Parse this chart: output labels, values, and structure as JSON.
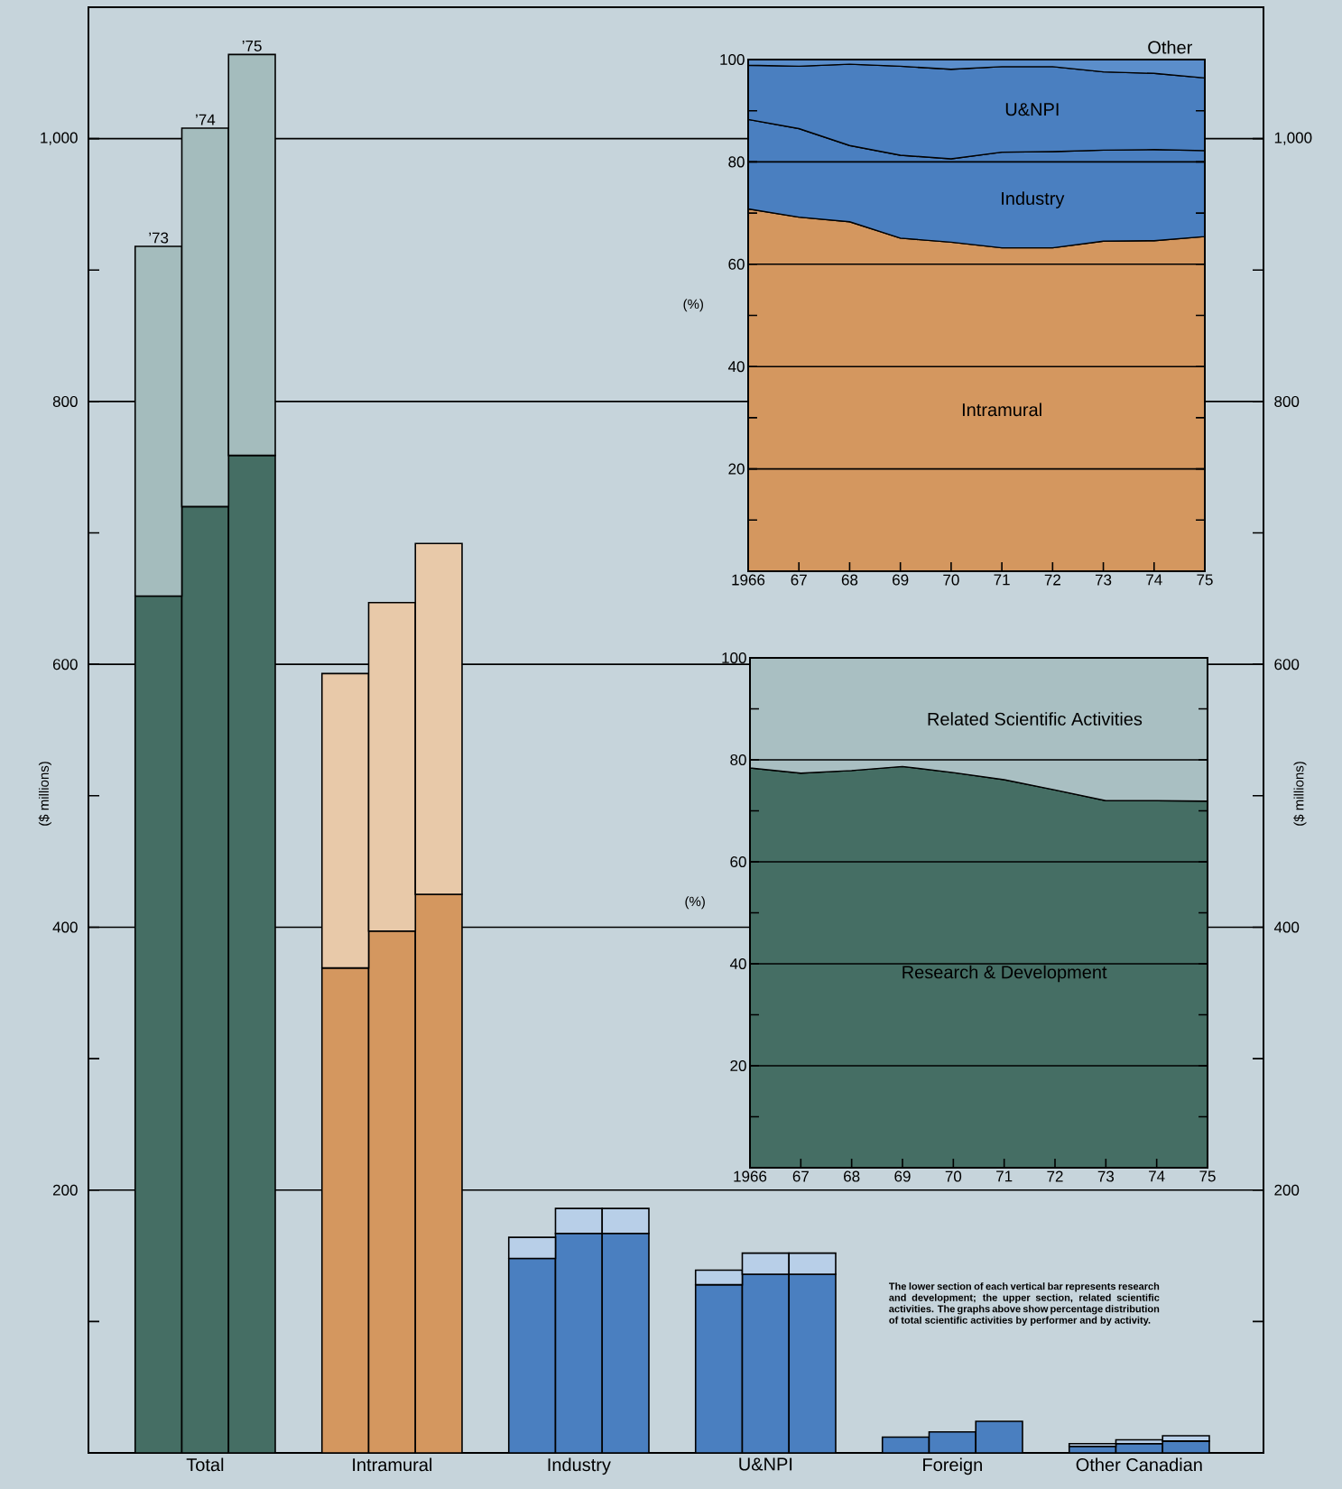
{
  "chart_data": [
    {
      "type": "bar",
      "stacked": true,
      "categories": [
        null,
        null,
        "Total",
        null,
        null,
        null,
        "Intramural",
        null,
        null,
        null,
        "Industry",
        null,
        null,
        null,
        "U&NPI",
        null,
        null,
        null,
        "Foreign",
        null,
        null,
        null,
        "Other Canadian",
        null
      ],
      "series": [
        {
          "values": [
            null,
            652,
            720,
            759,
            null,
            369,
            397,
            425,
            null,
            148,
            167,
            167,
            null,
            128,
            136,
            136,
            null,
            12,
            16,
            24,
            null,
            5,
            7,
            9
          ],
          "colors": [
            null,
            "#456e64",
            "#456e64",
            "#456e64",
            null,
            "#d4975f",
            "#d4975f",
            "#d4975f",
            null,
            "#4a7fc0",
            "#4a7fc0",
            "#4a7fc0",
            null,
            "#4a7fc0",
            "#4a7fc0",
            "#4a7fc0",
            null,
            "#4a7fc0",
            "#4a7fc0",
            "#4a7fc0",
            null,
            "#4a7fc0",
            "#4a7fc0",
            "#4a7fc0"
          ]
        },
        {
          "values": [
            null,
            266,
            288,
            305,
            null,
            224,
            250,
            267,
            null,
            16,
            19,
            19,
            null,
            11,
            16,
            16,
            null,
            null,
            null,
            null,
            null,
            2,
            3,
            4
          ],
          "colors": [
            null,
            "#a4bcbd",
            "#a4bcbd",
            "#a4bcbd",
            null,
            "#e8c9a9",
            "#e8c9a9",
            "#e8c9a9",
            null,
            "#b8cfe8",
            "#b8cfe8",
            "#b8cfe8",
            null,
            "#b8cfe8",
            "#b8cfe8",
            "#b8cfe8",
            null,
            null,
            null,
            null,
            null,
            "#b8cfe8",
            "#b8cfe8",
            "#b8cfe8"
          ]
        }
      ],
      "ylim": [
        0,
        1100
      ],
      "yticks": [
        {
          "value": 100,
          "label": null
        },
        200,
        {
          "value": 300,
          "label": null
        },
        400,
        {
          "value": 500,
          "label": null
        },
        600,
        {
          "value": 700,
          "label": null
        },
        800,
        {
          "value": 900,
          "label": null
        },
        {
          "value": 1000,
          "label": "1,000"
        }
      ],
      "y2lim": [
        0,
        1100
      ],
      "y2ticks": [
        {
          "value": 100,
          "label": null
        },
        200,
        {
          "value": 300,
          "label": null
        },
        400,
        {
          "value": 500,
          "label": null
        },
        600,
        {
          "value": 700,
          "label": null
        },
        800,
        {
          "value": 900,
          "label": null
        },
        {
          "value": 1000,
          "label": "1,000"
        }
      ],
      "ylabel": "($ millions)",
      "y2label": "($ millions)",
      "grid": "y",
      "annotations": [
        {
          "text": "’73",
          "y": 918
        },
        {
          "text": "’74",
          "y": 1008
        },
        {
          "text": "’75",
          "y": 1064
        },
        "The lower section of each vertical bar represents research and development; the upper section, related scientific activities. The graphs above show percentage distribution of total scientific activities by performer and by activity."
      ]
    },
    {
      "type": "area",
      "stacked": true,
      "x": [
        1966,
        1967,
        1968,
        1969,
        1970,
        1971,
        1972,
        1973,
        1974,
        1975
      ],
      "series": [
        {
          "name": "Intramural",
          "color": "#d4975f",
          "values": [
            70.8,
            69.2,
            68.3,
            65.1,
            64.3,
            63.2,
            63.2,
            64.5,
            64.6,
            65.4
          ]
        },
        {
          "name": "Industry",
          "color": "#4a7fc0",
          "values": [
            17.5,
            17.3,
            14.9,
            16.2,
            16.3,
            18.7,
            18.8,
            17.8,
            17.8,
            16.8
          ]
        },
        {
          "name": "U&NPI",
          "color": "#4a7fc0",
          "values": [
            10.6,
            12.2,
            15.9,
            17.4,
            17.5,
            16.7,
            16.6,
            15.3,
            14.9,
            14.2
          ]
        },
        {
          "name": "Other",
          "color": "#5b8ecb",
          "values": [
            1.1,
            1.3,
            0.9,
            1.3,
            1.9,
            1.4,
            1.4,
            2.4,
            2.7,
            3.6
          ]
        }
      ],
      "xlim": [
        1966,
        1975
      ],
      "xticks": [
        1966,
        {
          "value": 1967,
          "label": "67"
        },
        {
          "value": 1968,
          "label": "68"
        },
        {
          "value": 1969,
          "label": "69"
        },
        {
          "value": 1970,
          "label": "70"
        },
        {
          "value": 1971,
          "label": "71"
        },
        {
          "value": 1972,
          "label": "72"
        },
        {
          "value": 1973,
          "label": "73"
        },
        {
          "value": 1974,
          "label": "74"
        },
        {
          "value": 1975,
          "label": "75"
        }
      ],
      "ylim": [
        0,
        100
      ],
      "yticks": [
        {
          "value": 10,
          "label": null
        },
        20,
        {
          "value": 30,
          "label": null
        },
        40,
        {
          "value": 50,
          "label": null
        },
        60,
        {
          "value": 70,
          "label": null
        },
        80,
        {
          "value": 90,
          "label": null
        },
        100
      ],
      "ylabel": "(%)",
      "grid": "y"
    },
    {
      "type": "area",
      "stacked": true,
      "x": [
        1966,
        1967,
        1968,
        1969,
        1970,
        1971,
        1972,
        1973,
        1974,
        1975
      ],
      "series": [
        {
          "name": "Research & Development",
          "color": "#456e64",
          "values": [
            78.4,
            77.4,
            77.9,
            78.7,
            77.5,
            76.1,
            74.1,
            72.0,
            72.0,
            71.9
          ]
        },
        {
          "name": "Related Scientific Activities",
          "color": "#a9bfc2",
          "values": [
            21.6,
            22.6,
            22.1,
            21.3,
            22.5,
            23.9,
            25.9,
            28.0,
            28.0,
            28.1
          ]
        }
      ],
      "xlim": [
        1966,
        1975
      ],
      "xticks": [
        1966,
        {
          "value": 1967,
          "label": "67"
        },
        {
          "value": 1968,
          "label": "68"
        },
        {
          "value": 1969,
          "label": "69"
        },
        {
          "value": 1970,
          "label": "70"
        },
        {
          "value": 1971,
          "label": "71"
        },
        {
          "value": 1972,
          "label": "72"
        },
        {
          "value": 1973,
          "label": "73"
        },
        {
          "value": 1974,
          "label": "74"
        },
        {
          "value": 1975,
          "label": "75"
        }
      ],
      "ylim": [
        0,
        100
      ],
      "yticks": [
        {
          "value": 10,
          "label": null
        },
        20,
        {
          "value": 30,
          "label": null
        },
        40,
        {
          "value": 50,
          "label": null
        },
        60,
        {
          "value": 70,
          "label": null
        },
        80,
        {
          "value": 90,
          "label": null
        },
        100
      ],
      "ylabel": "(%)",
      "grid": "y"
    }
  ]
}
